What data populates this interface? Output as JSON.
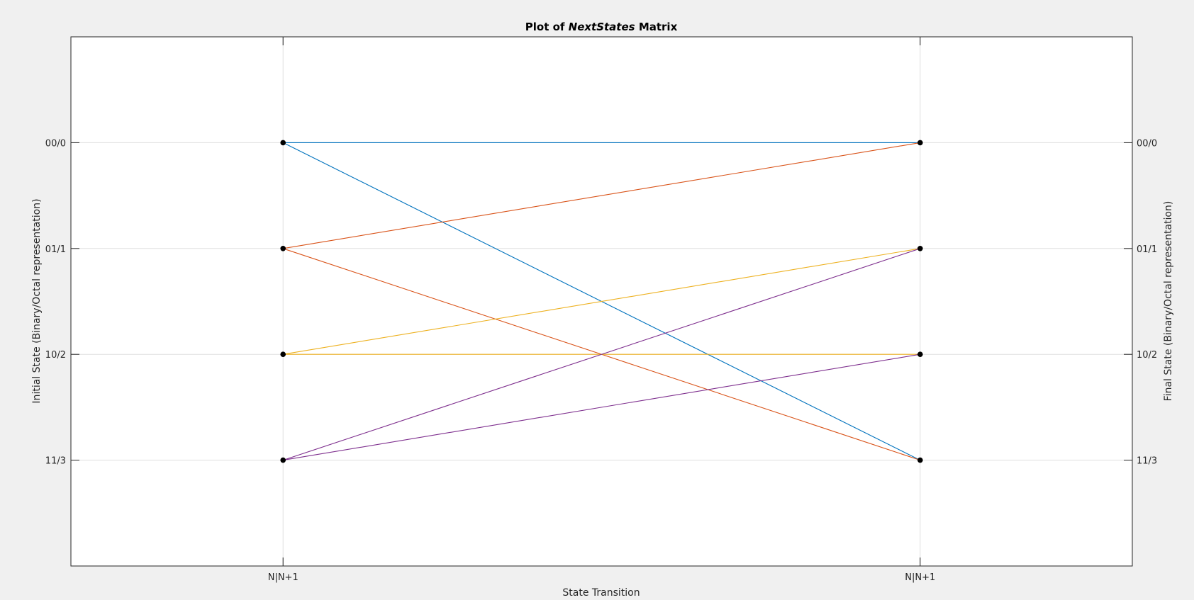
{
  "chart_data": {
    "type": "line",
    "title": {
      "prefix": "Plot of ",
      "emphasis": "NextStates",
      "suffix": " Matrix"
    },
    "xlabel": "State Transition",
    "ylabel_left": "Initial State (Binary/Octal representation)",
    "ylabel_right": "Final State (Binary/Octal representation)",
    "x_ticks": [
      {
        "x": 1,
        "label": "N|N+1"
      },
      {
        "x": 2,
        "label": "N|N+1"
      }
    ],
    "xlim": [
      0.667,
      2.333
    ],
    "ylim": [
      -0.5,
      4.5
    ],
    "y_reversed": true,
    "y_ticks": [
      {
        "y": 0.5,
        "label": "00/0"
      },
      {
        "y": 1.5,
        "label": "01/1"
      },
      {
        "y": 2.5,
        "label": "10/2"
      },
      {
        "y": 3.5,
        "label": "11/3"
      }
    ],
    "grid": true,
    "marker_color": "#000000",
    "series": [
      {
        "color": "#0072bd",
        "from": 0.5,
        "to": [
          0.5,
          3.5
        ]
      },
      {
        "color": "#d95319",
        "from": 1.5,
        "to": [
          0.5,
          3.5
        ]
      },
      {
        "color": "#edb120",
        "from": 2.5,
        "to": [
          1.5,
          2.5
        ]
      },
      {
        "color": "#7e2f8e",
        "from": 3.5,
        "to": [
          1.5,
          2.5
        ]
      }
    ]
  }
}
